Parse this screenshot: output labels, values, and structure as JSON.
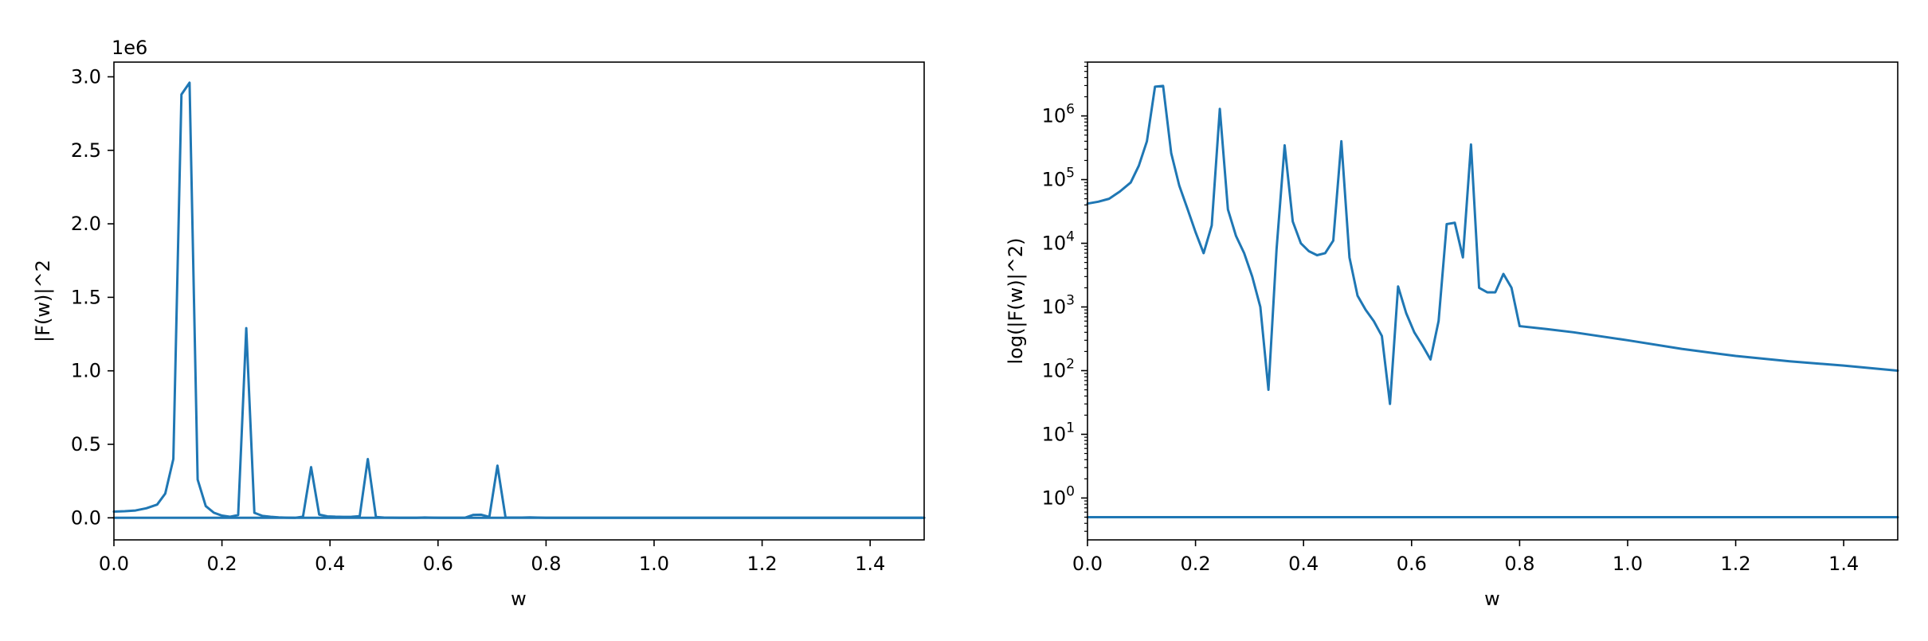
{
  "chart_data": [
    {
      "type": "line",
      "title": "",
      "xlabel": "w",
      "ylabel": "|F(w)|^2",
      "y_offset_label": "1e6",
      "xlim": [
        0.0,
        1.5
      ],
      "ylim": [
        -0.15,
        3.1
      ],
      "grid": false,
      "x_ticks": [
        "0.0",
        "0.2",
        "0.4",
        "0.6",
        "0.8",
        "1.0",
        "1.2",
        "1.4"
      ],
      "y_ticks": [
        "0.0",
        "0.5",
        "1.0",
        "1.5",
        "2.0",
        "2.5",
        "3.0"
      ],
      "series": [
        {
          "x": [
            0.0,
            0.02,
            0.04,
            0.06,
            0.08,
            0.095,
            0.11,
            0.125,
            0.14,
            0.155,
            0.17,
            0.185,
            0.2,
            0.215,
            0.23,
            0.245,
            0.26,
            0.275,
            0.29,
            0.305,
            0.32,
            0.335,
            0.35,
            0.365,
            0.38,
            0.395,
            0.41,
            0.425,
            0.44,
            0.455,
            0.47,
            0.485,
            0.5,
            0.515,
            0.53,
            0.545,
            0.56,
            0.575,
            0.59,
            0.605,
            0.62,
            0.635,
            0.65,
            0.665,
            0.68,
            0.695,
            0.71,
            0.725,
            0.74,
            0.755,
            0.77,
            0.785,
            0.8,
            0.85,
            0.9,
            1.0,
            1.1,
            1.2,
            1.3,
            1.4,
            1.5
          ],
          "y": [
            0.042,
            0.045,
            0.05,
            0.065,
            0.09,
            0.165,
            0.4,
            2.88,
            2.96,
            0.26,
            0.08,
            0.035,
            0.015,
            0.007,
            0.019,
            1.29,
            0.034,
            0.013,
            0.007,
            0.003,
            0.001,
            5e-05,
            0.008,
            0.345,
            0.022,
            0.01,
            0.0075,
            0.0065,
            0.007,
            0.011,
            0.4,
            0.006,
            0.0015,
            0.0009,
            0.0006,
            0.00035,
            3e-05,
            0.0021,
            0.0008,
            0.0004,
            0.00025,
            0.00015,
            0.0006,
            0.02,
            0.021,
            0.006,
            0.355,
            0.002,
            0.0017,
            0.0017,
            0.0033,
            0.002,
            0.0005,
            0.00045,
            0.0004,
            0.0003,
            0.00022,
            0.00017,
            0.00014,
            0.00012,
            0.0001
          ]
        },
        {
          "x": [
            0.0,
            1.5
          ],
          "y": [
            5e-07,
            5e-07
          ]
        }
      ]
    },
    {
      "type": "line",
      "title": "",
      "xlabel": "w",
      "ylabel": "log(|F(w)|^2)",
      "xlim": [
        0.0,
        1.5
      ],
      "ylim": [
        0.22,
        7000000
      ],
      "yscale": "log",
      "grid": false,
      "x_ticks": [
        "0.0",
        "0.2",
        "0.4",
        "0.6",
        "0.8",
        "1.0",
        "1.2",
        "1.4"
      ],
      "y_ticks": [
        {
          "base": "10",
          "exp": "0"
        },
        {
          "base": "10",
          "exp": "1"
        },
        {
          "base": "10",
          "exp": "2"
        },
        {
          "base": "10",
          "exp": "3"
        },
        {
          "base": "10",
          "exp": "4"
        },
        {
          "base": "10",
          "exp": "5"
        },
        {
          "base": "10",
          "exp": "6"
        }
      ],
      "series": [
        {
          "x": [
            0.0,
            0.02,
            0.04,
            0.06,
            0.08,
            0.095,
            0.11,
            0.125,
            0.14,
            0.155,
            0.17,
            0.185,
            0.2,
            0.215,
            0.23,
            0.245,
            0.26,
            0.275,
            0.29,
            0.305,
            0.32,
            0.335,
            0.35,
            0.365,
            0.38,
            0.395,
            0.41,
            0.425,
            0.44,
            0.455,
            0.47,
            0.485,
            0.5,
            0.515,
            0.53,
            0.545,
            0.56,
            0.575,
            0.59,
            0.605,
            0.62,
            0.635,
            0.65,
            0.665,
            0.68,
            0.695,
            0.71,
            0.725,
            0.74,
            0.755,
            0.77,
            0.785,
            0.8,
            0.85,
            0.9,
            1.0,
            1.1,
            1.2,
            1.3,
            1.4,
            1.5
          ],
          "y": [
            42000,
            45000,
            50000,
            65000,
            90000,
            165000,
            400000,
            2880000,
            2960000,
            260000,
            80000,
            35000,
            15000,
            7000,
            19000,
            1290000,
            34000,
            13000,
            7000,
            3000,
            1000,
            50,
            8000,
            345000,
            22000,
            10000,
            7500,
            6500,
            7000,
            11000,
            400000,
            6000,
            1500,
            900,
            600,
            350,
            30,
            2100,
            800,
            400,
            250,
            150,
            600,
            20000,
            21000,
            6000,
            355000,
            2000,
            1700,
            1700,
            3300,
            2000,
            500,
            450,
            400,
            300,
            220,
            170,
            140,
            120,
            100
          ]
        },
        {
          "x": [
            0.0,
            1.5
          ],
          "y": [
            0.5,
            0.5
          ]
        }
      ]
    }
  ],
  "colors": {
    "line": "#1f77b4",
    "axes": "#000000",
    "background": "#ffffff"
  }
}
